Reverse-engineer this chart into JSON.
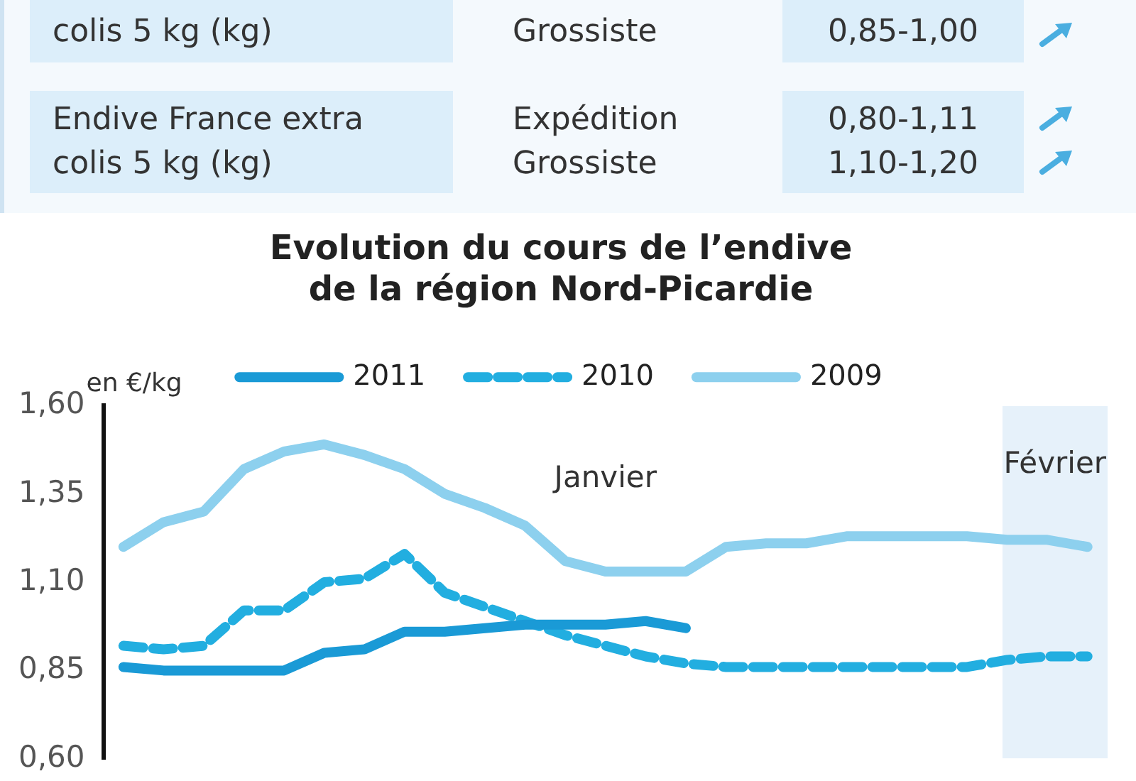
{
  "chart_data": [
    {
      "type": "other",
      "annotations": [
        "colis 5 kg (kg)",
        "Grossiste",
        "0,85-1,00",
        "Endive France extra",
        "Expédition",
        "0,80-1,11",
        "colis 5 kg (kg)",
        "Grossiste",
        "1,10-1,20"
      ]
    },
    {
      "type": "line",
      "title": "Evolution du cours de l’endive de la région Nord-Picardie",
      "ylabel": "en €/kg",
      "categories": [
        null,
        null,
        null,
        null,
        null,
        null,
        null,
        null,
        null,
        null,
        null,
        null,
        null,
        null,
        null,
        null,
        null,
        null,
        null,
        null,
        null,
        null,
        null,
        null,
        null
      ],
      "ylim": [
        0.6,
        1.6
      ],
      "yticks": [
        {
          "value": 0.6,
          "label": "0,60"
        },
        {
          "value": 0.85,
          "label": "0,85"
        },
        {
          "value": 1.1,
          "label": "1,10"
        },
        {
          "value": 1.35,
          "label": "1,35"
        },
        {
          "value": 1.6,
          "label": "1,60"
        }
      ],
      "tick_labels": "y",
      "grid": false,
      "legend": "top",
      "marker": "none",
      "series": [
        {
          "name": "2011",
          "color": "#1a9ad6",
          "line_style": "solid",
          "values": [
            0.86,
            0.85,
            0.85,
            0.85,
            0.85,
            0.9,
            0.91,
            0.96,
            0.96,
            0.97,
            0.98,
            0.98,
            0.98,
            0.99,
            0.97,
            null,
            null,
            null,
            null,
            null,
            null,
            null,
            null,
            null,
            null
          ]
        },
        {
          "name": "2010",
          "color": "#22aee0",
          "line_style": "dashed",
          "values": [
            0.92,
            0.91,
            0.92,
            1.02,
            1.02,
            1.1,
            1.11,
            1.18,
            1.07,
            1.03,
            0.99,
            0.95,
            0.92,
            0.89,
            0.87,
            0.86,
            0.86,
            0.86,
            0.86,
            0.86,
            0.86,
            0.86,
            0.88,
            0.89,
            0.89
          ]
        },
        {
          "name": "2009",
          "color": "#8dd0ee",
          "line_style": "solid",
          "values": [
            1.2,
            1.27,
            1.3,
            1.42,
            1.47,
            1.49,
            1.46,
            1.42,
            1.35,
            1.31,
            1.26,
            1.16,
            1.13,
            1.13,
            1.13,
            1.2,
            1.21,
            1.21,
            1.23,
            1.23,
            1.23,
            1.23,
            1.22,
            1.22,
            1.2
          ]
        }
      ],
      "annotations": [
        "Janvier",
        "Février"
      ]
    }
  ]
}
